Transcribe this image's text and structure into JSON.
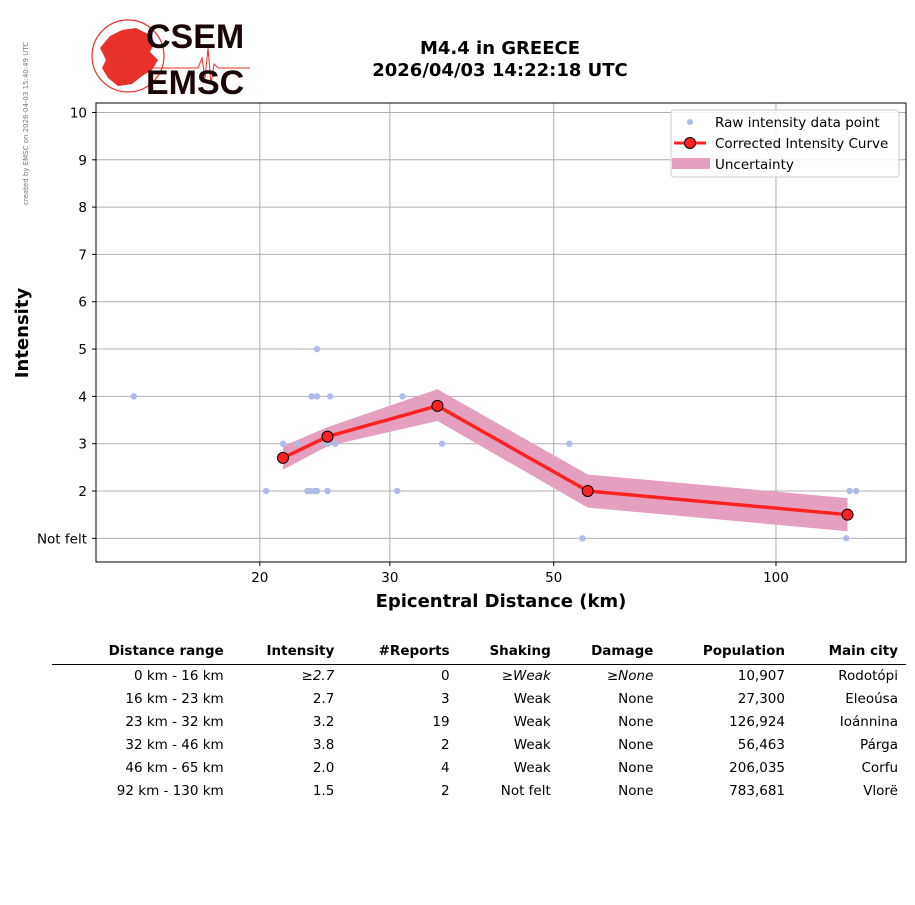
{
  "watermark": "created by EMSC on 2026-04-03 15:40:49 UTC",
  "logo": {
    "line1": "CSEM",
    "line2": "EMSC"
  },
  "title_line1": "M4.4 in GREECE",
  "title_line2": "2026/04/03 14:22:18 UTC",
  "colors": {
    "curve": "#ff2222",
    "band": "#e6a0bf",
    "raw": "#aebde8",
    "grid": "#b0b0b0"
  },
  "chart_data": {
    "type": "line",
    "xlabel": "Epicentral Distance (km)",
    "ylabel": "Intensity",
    "x_scale": "log",
    "xlim": [
      12,
      150
    ],
    "ylim": [
      0.5,
      10.2
    ],
    "x_ticks": [
      20,
      30,
      50,
      100
    ],
    "y_ticks": [
      {
        "value": 1,
        "label": "Not felt"
      },
      {
        "value": 2,
        "label": "2"
      },
      {
        "value": 3,
        "label": "3"
      },
      {
        "value": 4,
        "label": "4"
      },
      {
        "value": 5,
        "label": "5"
      },
      {
        "value": 6,
        "label": "6"
      },
      {
        "value": 7,
        "label": "7"
      },
      {
        "value": 8,
        "label": "8"
      },
      {
        "value": 9,
        "label": "9"
      },
      {
        "value": 10,
        "label": "10"
      }
    ],
    "grid": true,
    "legend_position": "top-right",
    "legend": [
      "Raw intensity data point",
      "Corrected Intensity Curve",
      "Uncertainty"
    ],
    "raw_points": [
      [
        13.5,
        4
      ],
      [
        20.4,
        2
      ],
      [
        21.5,
        3
      ],
      [
        22.5,
        3
      ],
      [
        23.2,
        2
      ],
      [
        23.4,
        2
      ],
      [
        23.5,
        4
      ],
      [
        23.7,
        2
      ],
      [
        23.9,
        2
      ],
      [
        23.9,
        5
      ],
      [
        23.9,
        4
      ],
      [
        24.7,
        3
      ],
      [
        24.7,
        2
      ],
      [
        24.9,
        4
      ],
      [
        25.3,
        3
      ],
      [
        30.7,
        2
      ],
      [
        31.2,
        4
      ],
      [
        35.3,
        3
      ],
      [
        52.5,
        3
      ],
      [
        54.7,
        1
      ],
      [
        124.5,
        1
      ],
      [
        125.8,
        2
      ],
      [
        128.4,
        2
      ]
    ],
    "series": [
      {
        "name": "Corrected Intensity Curve",
        "x": [
          21.5,
          24.7,
          34.8,
          55.6,
          125.0
        ],
        "y": [
          2.7,
          3.15,
          3.8,
          2.0,
          1.5
        ]
      }
    ],
    "uncertainty": {
      "x": [
        21.5,
        24.7,
        34.8,
        55.6,
        125.0
      ],
      "upper": [
        2.95,
        3.35,
        4.15,
        2.35,
        1.85
      ],
      "lower": [
        2.45,
        2.95,
        3.48,
        1.65,
        1.15
      ]
    }
  },
  "table": {
    "headers": [
      "Distance range",
      "Intensity",
      "#Reports",
      "Shaking",
      "Damage",
      "Population",
      "Main city"
    ],
    "rows": [
      {
        "range": "0 km -   16 km",
        "intensity": "≥2.7",
        "reports": "0",
        "shaking": "≥Weak",
        "damage": "≥None",
        "population": "10,907",
        "city": "Rodotópi"
      },
      {
        "range": "16 km -   23 km",
        "intensity": "2.7",
        "reports": "3",
        "shaking": "Weak",
        "damage": "None",
        "population": "27,300",
        "city": "Eleoúsa"
      },
      {
        "range": "23 km -   32 km",
        "intensity": "3.2",
        "reports": "19",
        "shaking": "Weak",
        "damage": "None",
        "population": "126,924",
        "city": "Ioánnina"
      },
      {
        "range": "32 km -   46 km",
        "intensity": "3.8",
        "reports": "2",
        "shaking": "Weak",
        "damage": "None",
        "population": "56,463",
        "city": "Párga"
      },
      {
        "range": "46 km -   65 km",
        "intensity": "2.0",
        "reports": "4",
        "shaking": "Weak",
        "damage": "None",
        "population": "206,035",
        "city": "Corfu"
      },
      {
        "range": "92 km -  130 km",
        "intensity": "1.5",
        "reports": "2",
        "shaking": "Not felt",
        "damage": "None",
        "population": "783,681",
        "city": "Vlorë"
      }
    ]
  }
}
